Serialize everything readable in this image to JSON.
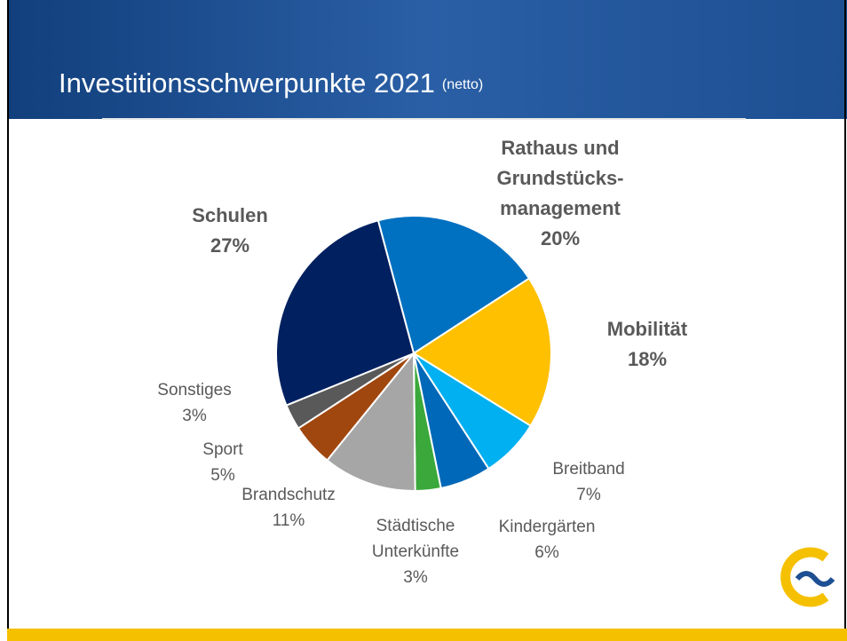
{
  "header": {
    "title": "Investitionsschwerpunkte 2021",
    "note": "(netto)"
  },
  "chart_data": {
    "type": "pie",
    "categories": [
      [
        "Rathaus und",
        "Grundstücks-",
        "management"
      ],
      [
        "Mobilität"
      ],
      [
        "Breitband"
      ],
      [
        "Kindergärten"
      ],
      [
        "Städtische",
        "Unterkünfte"
      ],
      [
        "Brandschutz"
      ],
      [
        "Sport"
      ],
      [
        "Sonstiges"
      ],
      [
        "Schulen"
      ]
    ],
    "values": [
      20,
      18,
      7,
      6,
      3,
      11,
      5,
      3,
      27
    ],
    "value_labels": [
      "20%",
      "18%",
      "7%",
      "6%",
      "3%",
      "11%",
      "5%",
      "3%",
      "27%"
    ],
    "colors": [
      "#0070c0",
      "#ffc000",
      "#00b0f0",
      "#0068b8",
      "#3aa83a",
      "#a6a6a6",
      "#a0470f",
      "#595959",
      "#002060"
    ]
  }
}
